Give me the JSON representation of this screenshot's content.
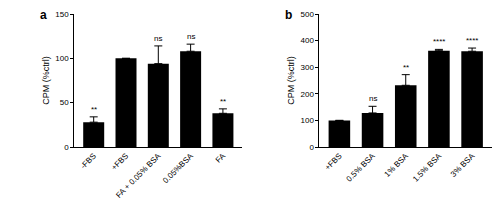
{
  "chart_data": [
    {
      "type": "bar",
      "title": "a",
      "y_label": "CPM (%ctrl)",
      "categories": [
        "-FBS",
        "+FBS",
        "FA + 0.05% BSA",
        "0.05%BSA",
        "FA"
      ],
      "values": [
        28,
        100,
        94,
        108,
        38
      ],
      "errors": [
        6,
        0,
        20,
        8,
        5
      ],
      "significance": [
        "**",
        null,
        "ns",
        "ns",
        "**"
      ],
      "color": "#000000",
      "ylim": [
        0,
        150
      ],
      "yticks": [
        0,
        50,
        100,
        150
      ],
      "grid": false
    },
    {
      "type": "bar",
      "title": "b",
      "y_label": "CPM (%ctrl)",
      "categories": [
        "+FBS",
        "0.5% BSA",
        "1% BSA",
        "1.5% BSA",
        "3% BSA"
      ],
      "values": [
        100,
        128,
        232,
        362,
        360
      ],
      "errors": [
        0,
        25,
        40,
        5,
        12
      ],
      "significance": [
        null,
        "ns",
        "**",
        "****",
        "****"
      ],
      "color": "#000000",
      "ylim": [
        0,
        500
      ],
      "yticks": [
        0,
        100,
        200,
        300,
        400,
        500
      ],
      "grid": false
    }
  ]
}
